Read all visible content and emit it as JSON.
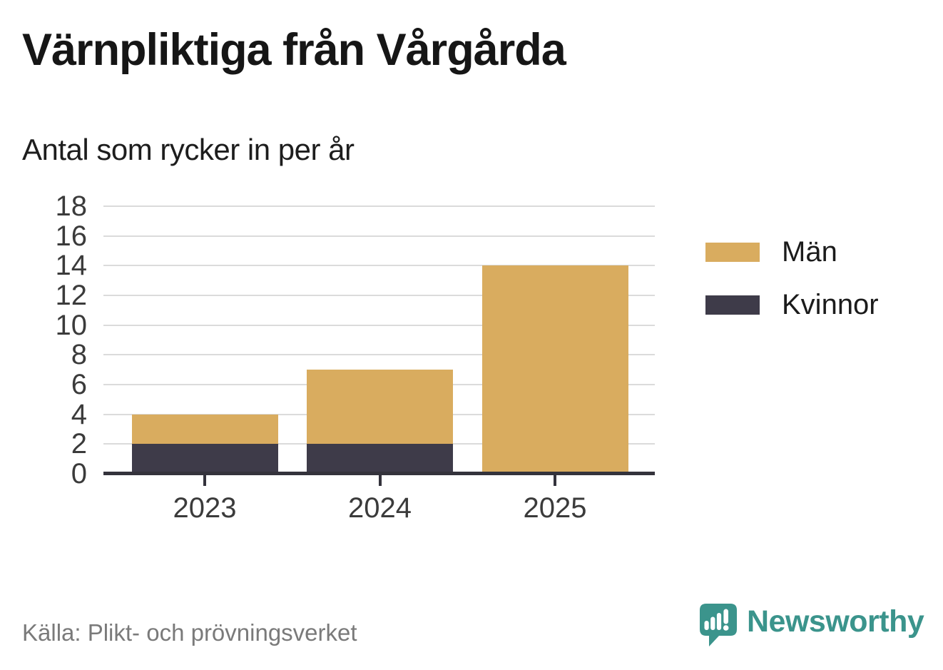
{
  "title": "Värnpliktiga från Vårgårda",
  "subtitle": "Antal som rycker in per år",
  "source": "Källa: Plikt- och prövningsverket",
  "brand": {
    "name": "Newsworthy",
    "color": "#3b948c",
    "icon": "bar-chart-speech-bubble-icon"
  },
  "colors": {
    "men": "#d9ac5f",
    "women": "#3e3b49",
    "axis": "#34333c",
    "grid": "#dbdbdb",
    "tick_label": "#3b3b3b",
    "title_text": "#161616",
    "source_text": "#7a7a7a"
  },
  "chart_data": {
    "type": "bar",
    "stacked": true,
    "title": "Värnpliktiga från Vårgårda",
    "subtitle": "Antal som rycker in per år",
    "categories": [
      "2023",
      "2024",
      "2025"
    ],
    "series": [
      {
        "name": "Män",
        "color": "#d9ac5f",
        "values": [
          2,
          5,
          14
        ]
      },
      {
        "name": "Kvinnor",
        "color": "#3e3b49",
        "values": [
          2,
          2,
          0
        ]
      }
    ],
    "stack_order_bottom_to_top": [
      "Kvinnor",
      "Män"
    ],
    "stack_totals": [
      4,
      7,
      14
    ],
    "xlabel": "",
    "ylabel": "",
    "ylim": [
      0,
      18
    ],
    "yticks": [
      0,
      2,
      4,
      6,
      8,
      10,
      12,
      14,
      16,
      18
    ],
    "grid": true,
    "legend_position": "right"
  }
}
